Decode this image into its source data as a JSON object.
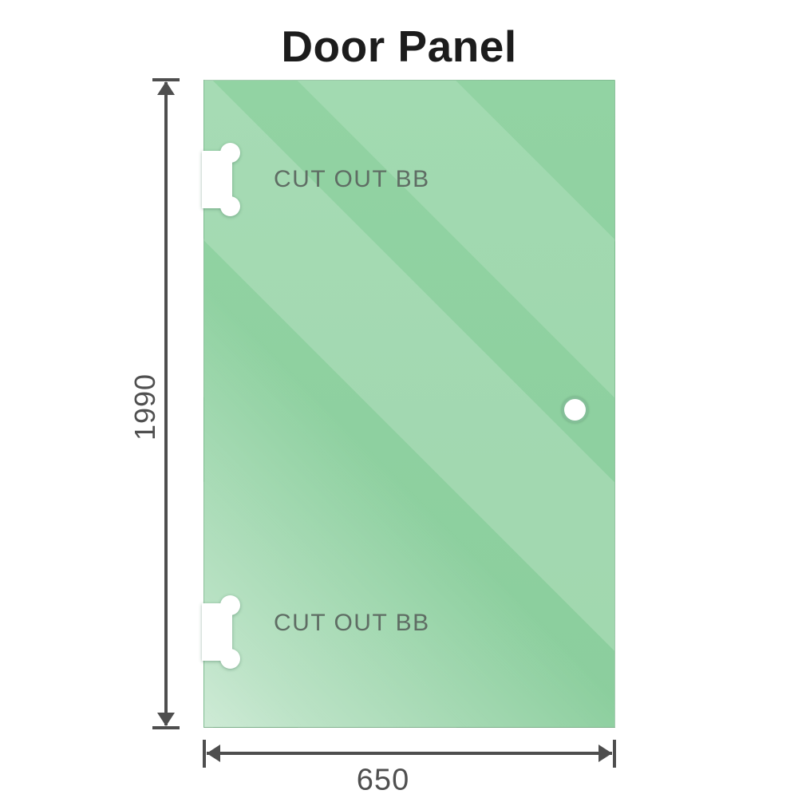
{
  "title": "Door Panel",
  "panel": {
    "cutout_top_label": "CUT OUT BB",
    "cutout_bottom_label": "CUT OUT BB",
    "glass_color_base": "#8ccf9e",
    "glass_color_highlight": "#cdeed6"
  },
  "dimensions": {
    "height": "1990",
    "width": "650"
  },
  "colors": {
    "dimension_line": "#4e4e4e",
    "dimension_text": "#4f4f4f",
    "cutout_label_text": "#5f6d64",
    "title_text": "#1c1c1c",
    "hole_ring": "#84bf98"
  }
}
